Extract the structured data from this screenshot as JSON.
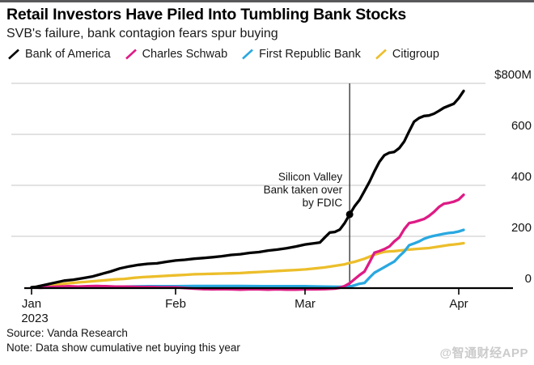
{
  "header": {
    "title": "Retail Investors Have Piled Into Tumbling Bank Stocks",
    "subtitle": "SVB's failure, bank contagion fears spur buying"
  },
  "legend": {
    "items": [
      {
        "label": "Bank of America",
        "color": "#000000"
      },
      {
        "label": "Charles Schwab",
        "color": "#de1b85"
      },
      {
        "label": "First Republic Bank",
        "color": "#29a8e0"
      },
      {
        "label": "Citigroup",
        "color": "#ecbe2b"
      }
    ]
  },
  "chart_data": {
    "type": "line",
    "title": "Retail Investors Have Piled Into Tumbling Bank Stocks",
    "subtitle": "SVB's failure, bank contagion fears spur buying",
    "x_unit": "day of 2023 (Jan 1 = 0)",
    "y_unit": "cumulative net buying, $M",
    "xlim": [
      0,
      92
    ],
    "ylim": [
      -10,
      800
    ],
    "grid": "horizontal",
    "legend_position": "top",
    "y_ticks": [
      {
        "value": 800,
        "label": "$800M"
      },
      {
        "value": 600,
        "label": "600"
      },
      {
        "value": 400,
        "label": "400"
      },
      {
        "value": 200,
        "label": "200"
      },
      {
        "value": 0,
        "label": "0"
      }
    ],
    "x_ticks": [
      {
        "day": 0,
        "label": "Jan",
        "sublabel": "2023"
      },
      {
        "day": 31,
        "label": "Feb",
        "sublabel": ""
      },
      {
        "day": 59,
        "label": "Mar",
        "sublabel": ""
      },
      {
        "day": 90,
        "label": "Apr",
        "sublabel": ""
      }
    ],
    "annotation": {
      "text_lines": [
        "Silicon Valley",
        "Bank taken over",
        "by FDIC"
      ],
      "event_day": 68,
      "marker_series": "Bank of America",
      "marker_value": 286,
      "line_color": "#2b2b2b"
    },
    "series": [
      {
        "name": "Citigroup",
        "color": "#ecbe2b",
        "points": [
          [
            0,
            0
          ],
          [
            2,
            3
          ],
          [
            4,
            8
          ],
          [
            6,
            12
          ],
          [
            8,
            16
          ],
          [
            10,
            19
          ],
          [
            12,
            22
          ],
          [
            14,
            25
          ],
          [
            16,
            28
          ],
          [
            18,
            31
          ],
          [
            20,
            33
          ],
          [
            22,
            37
          ],
          [
            24,
            40
          ],
          [
            26,
            42
          ],
          [
            28,
            44
          ],
          [
            31,
            47
          ],
          [
            33,
            49
          ],
          [
            35,
            51
          ],
          [
            37,
            52
          ],
          [
            39,
            53
          ],
          [
            41,
            54
          ],
          [
            43,
            55
          ],
          [
            45,
            56
          ],
          [
            47,
            58
          ],
          [
            49,
            60
          ],
          [
            51,
            62
          ],
          [
            53,
            64
          ],
          [
            55,
            66
          ],
          [
            57,
            68
          ],
          [
            59,
            70
          ],
          [
            61,
            74
          ],
          [
            63,
            78
          ],
          [
            65,
            84
          ],
          [
            67,
            90
          ],
          [
            68,
            96
          ],
          [
            69,
            100
          ],
          [
            70,
            106
          ],
          [
            71,
            112
          ],
          [
            72,
            120
          ],
          [
            73,
            128
          ],
          [
            74,
            134
          ],
          [
            75,
            139
          ],
          [
            76,
            141
          ],
          [
            77,
            142
          ],
          [
            78,
            144
          ],
          [
            80,
            148
          ],
          [
            82,
            151
          ],
          [
            84,
            154
          ],
          [
            86,
            160
          ],
          [
            88,
            166
          ],
          [
            89,
            168
          ],
          [
            90,
            170
          ],
          [
            91,
            173
          ]
        ]
      },
      {
        "name": "First Republic Bank",
        "color": "#29a8e0",
        "points": [
          [
            0,
            0
          ],
          [
            5,
            1
          ],
          [
            10,
            2
          ],
          [
            15,
            3
          ],
          [
            20,
            3
          ],
          [
            25,
            4
          ],
          [
            31,
            4
          ],
          [
            35,
            5
          ],
          [
            40,
            5
          ],
          [
            45,
            5
          ],
          [
            50,
            4
          ],
          [
            55,
            4
          ],
          [
            59,
            4
          ],
          [
            63,
            3
          ],
          [
            66,
            2
          ],
          [
            68,
            3
          ],
          [
            69,
            8
          ],
          [
            70,
            14
          ],
          [
            71,
            17
          ],
          [
            72,
            38
          ],
          [
            73,
            57
          ],
          [
            74,
            68
          ],
          [
            75,
            79
          ],
          [
            76,
            90
          ],
          [
            77,
            101
          ],
          [
            78,
            122
          ],
          [
            79,
            140
          ],
          [
            80,
            165
          ],
          [
            81,
            172
          ],
          [
            82,
            180
          ],
          [
            83,
            190
          ],
          [
            84,
            197
          ],
          [
            85,
            202
          ],
          [
            86,
            206
          ],
          [
            87,
            210
          ],
          [
            88,
            213
          ],
          [
            89,
            215
          ],
          [
            90,
            219
          ],
          [
            91,
            225
          ]
        ]
      },
      {
        "name": "Charles Schwab",
        "color": "#de1b85",
        "points": [
          [
            0,
            0
          ],
          [
            2,
            -2
          ],
          [
            4,
            1
          ],
          [
            6,
            3
          ],
          [
            8,
            4
          ],
          [
            10,
            3
          ],
          [
            12,
            4
          ],
          [
            14,
            5
          ],
          [
            16,
            4
          ],
          [
            18,
            3
          ],
          [
            20,
            3
          ],
          [
            22,
            2
          ],
          [
            24,
            1
          ],
          [
            26,
            1
          ],
          [
            28,
            0
          ],
          [
            31,
            0
          ],
          [
            33,
            -3
          ],
          [
            35,
            -5
          ],
          [
            37,
            -7
          ],
          [
            39,
            -8
          ],
          [
            41,
            -7
          ],
          [
            43,
            -8
          ],
          [
            45,
            -9
          ],
          [
            47,
            -8
          ],
          [
            49,
            -8
          ],
          [
            51,
            -9
          ],
          [
            53,
            -8
          ],
          [
            55,
            -9
          ],
          [
            57,
            -9
          ],
          [
            59,
            -8
          ],
          [
            61,
            -8
          ],
          [
            63,
            -7
          ],
          [
            65,
            -5
          ],
          [
            66,
            -2
          ],
          [
            67,
            5
          ],
          [
            68,
            16
          ],
          [
            69,
            32
          ],
          [
            70,
            48
          ],
          [
            71,
            62
          ],
          [
            72,
            98
          ],
          [
            73,
            136
          ],
          [
            74,
            142
          ],
          [
            75,
            150
          ],
          [
            76,
            160
          ],
          [
            77,
            180
          ],
          [
            78,
            196
          ],
          [
            79,
            228
          ],
          [
            80,
            252
          ],
          [
            81,
            256
          ],
          [
            82,
            262
          ],
          [
            83,
            268
          ],
          [
            84,
            280
          ],
          [
            85,
            296
          ],
          [
            86,
            315
          ],
          [
            87,
            328
          ],
          [
            88,
            331
          ],
          [
            89,
            336
          ],
          [
            90,
            344
          ],
          [
            91,
            363
          ]
        ]
      },
      {
        "name": "Bank of America",
        "color": "#000000",
        "points": [
          [
            0,
            0
          ],
          [
            1,
            2
          ],
          [
            3,
            10
          ],
          [
            5,
            18
          ],
          [
            7,
            26
          ],
          [
            9,
            30
          ],
          [
            11,
            36
          ],
          [
            13,
            42
          ],
          [
            15,
            52
          ],
          [
            17,
            62
          ],
          [
            19,
            74
          ],
          [
            21,
            82
          ],
          [
            23,
            88
          ],
          [
            25,
            92
          ],
          [
            27,
            94
          ],
          [
            29,
            100
          ],
          [
            31,
            105
          ],
          [
            33,
            108
          ],
          [
            35,
            112
          ],
          [
            37,
            115
          ],
          [
            39,
            118
          ],
          [
            41,
            122
          ],
          [
            43,
            127
          ],
          [
            45,
            130
          ],
          [
            47,
            135
          ],
          [
            49,
            138
          ],
          [
            51,
            144
          ],
          [
            53,
            148
          ],
          [
            55,
            153
          ],
          [
            57,
            160
          ],
          [
            59,
            168
          ],
          [
            61,
            173
          ],
          [
            62,
            176
          ],
          [
            63,
            196
          ],
          [
            64,
            215
          ],
          [
            65,
            217
          ],
          [
            66,
            226
          ],
          [
            67,
            252
          ],
          [
            68,
            286
          ],
          [
            69,
            318
          ],
          [
            70,
            343
          ],
          [
            71,
            378
          ],
          [
            72,
            414
          ],
          [
            73,
            455
          ],
          [
            74,
            492
          ],
          [
            75,
            518
          ],
          [
            76,
            528
          ],
          [
            77,
            531
          ],
          [
            78,
            546
          ],
          [
            79,
            572
          ],
          [
            80,
            612
          ],
          [
            81,
            650
          ],
          [
            82,
            664
          ],
          [
            83,
            672
          ],
          [
            84,
            674
          ],
          [
            85,
            681
          ],
          [
            86,
            692
          ],
          [
            87,
            704
          ],
          [
            88,
            712
          ],
          [
            89,
            720
          ],
          [
            90,
            742
          ],
          [
            91,
            770
          ]
        ]
      }
    ]
  },
  "footer": {
    "source": "Source: Vanda Research",
    "note": "Note: Data show cumulative net buying this year",
    "watermark": "@智通财经APP"
  }
}
